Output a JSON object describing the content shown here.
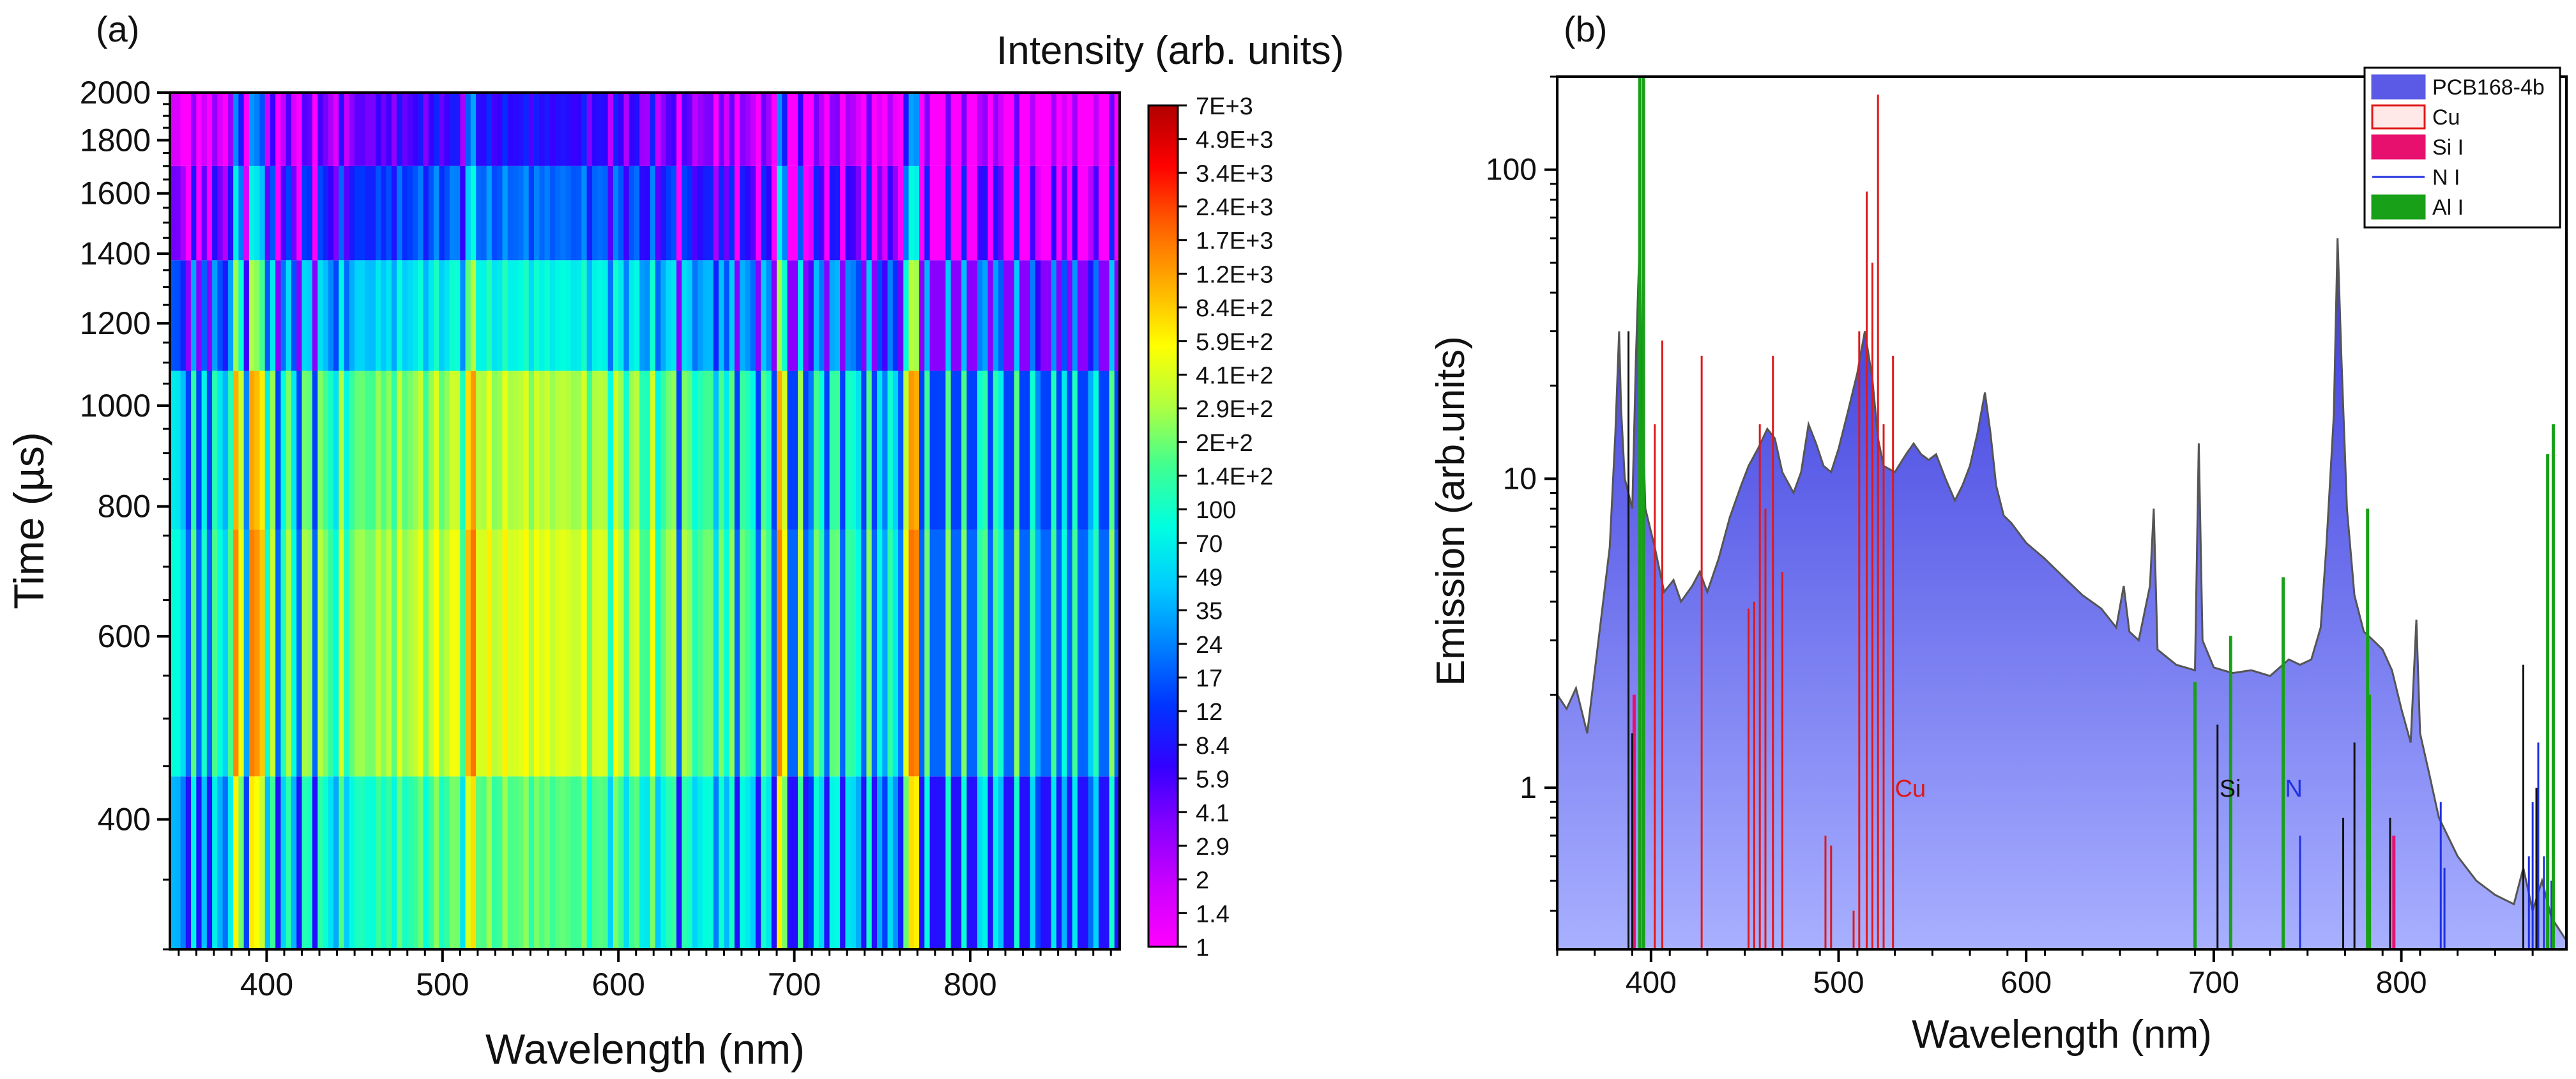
{
  "chart_data": [
    {
      "panel_label": "(a)",
      "type": "heatmap",
      "title": "Intensity (arb. units)",
      "xlabel": "Wavelength (nm)",
      "ylabel": "Time (µs)",
      "xlim": [
        345,
        885
      ],
      "ylim": [
        300,
        2000
      ],
      "yscale": "log",
      "x_ticks": [
        "400",
        "500",
        "600",
        "700",
        "800"
      ],
      "y_ticks": [
        "400",
        "600",
        "800",
        "1000",
        "1200",
        "1400",
        "1600",
        "1800",
        "2000"
      ],
      "time_bands": [
        {
          "from": 300,
          "to": 440,
          "base_intensity": 160
        },
        {
          "from": 440,
          "to": 760,
          "base_intensity": 380
        },
        {
          "from": 760,
          "to": 1080,
          "base_intensity": 280
        },
        {
          "from": 1080,
          "to": 1380,
          "base_intensity": 70
        },
        {
          "from": 1380,
          "to": 1700,
          "base_intensity": 18
        },
        {
          "from": 1700,
          "to": 2000,
          "base_intensity": 7
        }
      ],
      "bright_lines_nm": [
        383,
        392,
        396,
        517,
        692,
        766,
        769
      ],
      "colorbar": {
        "scale": "log",
        "min": 1,
        "max": 7000,
        "labels": [
          "7E+3",
          "4.9E+3",
          "3.4E+3",
          "2.4E+3",
          "1.7E+3",
          "1.2E+3",
          "8.4E+2",
          "5.9E+2",
          "4.1E+2",
          "2.9E+2",
          "2E+2",
          "1.4E+2",
          "100",
          "70",
          "49",
          "35",
          "24",
          "17",
          "12",
          "8.4",
          "5.9",
          "4.1",
          "2.9",
          "2",
          "1.4",
          "1"
        ],
        "colors": [
          "#ff00ff",
          "#cc00ff",
          "#8800ff",
          "#3300ff",
          "#0033ff",
          "#0080ff",
          "#00ccff",
          "#00ffe0",
          "#40ff90",
          "#b0ff40",
          "#ffff00",
          "#ffb000",
          "#ff6000",
          "#ff0000",
          "#b00000"
        ]
      }
    },
    {
      "panel_label": "(b)",
      "type": "line",
      "xlabel": "Wavelength (nm)",
      "ylabel": "Emission (arb.units)",
      "xlim": [
        350,
        888
      ],
      "ylim": [
        0.3,
        200
      ],
      "yscale": "log",
      "x_ticks": [
        "400",
        "500",
        "600",
        "700",
        "800"
      ],
      "y_ticks": [
        "1",
        "10",
        "100"
      ],
      "legend": [
        {
          "label": "PCB168-4b",
          "color": "#5a5ae6",
          "style": "area"
        },
        {
          "label": "Cu",
          "color": "#e01818",
          "style": "outline"
        },
        {
          "label": "Si I",
          "color": "#e8106e",
          "style": "fill"
        },
        {
          "label": "N I",
          "color": "#2030e0",
          "style": "line"
        },
        {
          "label": "Al I",
          "color": "#18a018",
          "style": "fill"
        }
      ],
      "annotations": [
        {
          "text": "Cu",
          "x": 530,
          "y": 1.0,
          "color": "#e01818"
        },
        {
          "text": "Si",
          "x": 703,
          "y": 1.0,
          "color": "#111111"
        },
        {
          "text": "N",
          "x": 738,
          "y": 1.0,
          "color": "#2030e0"
        }
      ],
      "spectrum": {
        "name": "PCB168-4b",
        "x": [
          350,
          355,
          360,
          366,
          372,
          378,
          381,
          383,
          384,
          386,
          390,
          392,
          394,
          395,
          397,
          402,
          407,
          412,
          416,
          422,
          426,
          430,
          436,
          442,
          448,
          452,
          457,
          462,
          466,
          470,
          476,
          480,
          484,
          488,
          492,
          496,
          500,
          505,
          510,
          514,
          518,
          521,
          524,
          530,
          536,
          540,
          544,
          548,
          552,
          557,
          562,
          566,
          570,
          574,
          578,
          581,
          584,
          588,
          592,
          600,
          610,
          620,
          630,
          640,
          648,
          652,
          655,
          660,
          666,
          668,
          670,
          680,
          690,
          692,
          694,
          700,
          710,
          720,
          730,
          740,
          746,
          752,
          757,
          760,
          764,
          766,
          768,
          771,
          775,
          780,
          785,
          790,
          795,
          800,
          805,
          808,
          810,
          815,
          820,
          830,
          840,
          850,
          860,
          865,
          870,
          875,
          880,
          888
        ],
        "y": [
          2.0,
          1.8,
          2.1,
          1.5,
          3.0,
          6.0,
          14,
          30,
          17,
          10,
          8,
          25,
          60,
          20,
          8,
          6,
          4.3,
          4.7,
          4.0,
          4.5,
          5.0,
          4.3,
          5.5,
          7.5,
          9.5,
          11,
          12.5,
          14.5,
          13.5,
          10.5,
          9,
          10.5,
          15,
          13,
          11,
          10.5,
          12.5,
          16.5,
          22,
          30,
          21,
          13.5,
          11,
          10.5,
          12,
          13,
          12,
          11.5,
          12,
          10,
          8.5,
          9.5,
          11,
          14,
          19,
          14,
          9.5,
          7.6,
          7.2,
          6.2,
          5.5,
          4.8,
          4.2,
          3.8,
          3.3,
          4.5,
          3.2,
          3.0,
          4.5,
          8,
          2.8,
          2.5,
          2.4,
          13,
          3,
          2.45,
          2.35,
          2.4,
          2.3,
          2.6,
          2.5,
          2.6,
          3.3,
          6,
          16,
          60,
          25,
          8,
          4.2,
          3.2,
          3.0,
          2.8,
          2.4,
          1.8,
          1.4,
          3.5,
          1.5,
          1.1,
          0.8,
          0.6,
          0.5,
          0.45,
          0.42,
          0.55,
          0.4,
          0.5,
          0.38,
          0.32
        ]
      },
      "lines": [
        {
          "name": "Cu",
          "color": "#e01818",
          "width": 3,
          "peaks": [
            [
              402,
              15
            ],
            [
              406,
              28
            ],
            [
              427,
              25
            ],
            [
              452,
              3.8
            ],
            [
              455,
              4
            ],
            [
              458,
              15
            ],
            [
              461,
              8
            ],
            [
              465,
              25
            ],
            [
              470,
              5
            ],
            [
              493,
              0.7
            ],
            [
              496,
              0.65
            ],
            [
              508,
              0.4
            ],
            [
              511,
              30
            ],
            [
              515,
              85
            ],
            [
              518,
              50
            ],
            [
              521,
              175
            ],
            [
              524,
              15
            ],
            [
              529,
              25
            ]
          ]
        },
        {
          "name": "Si I",
          "color": "#e8106e",
          "width": 5,
          "peaks": [
            [
              391,
              2.0
            ],
            [
              796,
              0.7
            ]
          ]
        },
        {
          "name": "N I",
          "color": "#2030e0",
          "width": 3,
          "peaks": [
            [
              746,
              0.7
            ],
            [
              821,
              0.9
            ],
            [
              823,
              0.55
            ],
            [
              868,
              0.6
            ],
            [
              870,
              0.9
            ],
            [
              873,
              1.4
            ],
            [
              876,
              0.6
            ],
            [
              880,
              0.5
            ]
          ]
        },
        {
          "name": "Al I",
          "color": "#18a018",
          "width": 5,
          "peaks": [
            [
              394,
              200
            ],
            [
              396,
              200
            ],
            [
              690,
              2.2
            ],
            [
              709,
              3.1
            ],
            [
              737,
              4.8
            ],
            [
              782,
              8
            ],
            [
              783,
              2
            ],
            [
              878,
              12
            ],
            [
              881,
              15
            ]
          ]
        },
        {
          "name": "Si",
          "color": "#111111",
          "width": 3,
          "peaks": [
            [
              388,
              30
            ],
            [
              390,
              1.5
            ],
            [
              702,
              1.6
            ],
            [
              769,
              0.8
            ],
            [
              775,
              1.4
            ],
            [
              794,
              0.8
            ],
            [
              865,
              2.5
            ],
            [
              872,
              1.0
            ]
          ]
        }
      ]
    }
  ]
}
